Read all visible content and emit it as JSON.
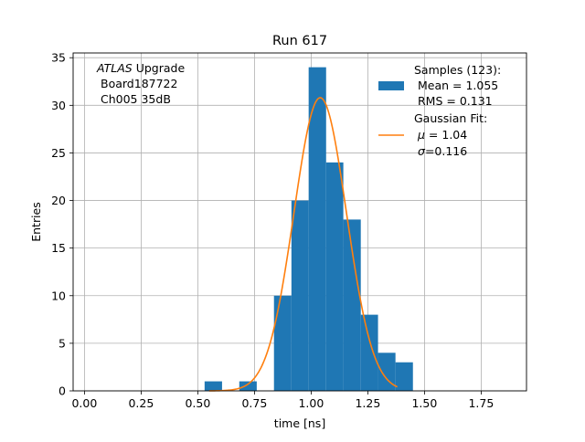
{
  "chart_data": {
    "type": "bar",
    "title": "Run 617",
    "xlabel": "time [ns]",
    "ylabel": "Entries",
    "xlim": [
      -0.05,
      1.95
    ],
    "ylim": [
      0,
      35.5
    ],
    "xticks": [
      0.0,
      0.25,
      0.5,
      0.75,
      1.0,
      1.25,
      1.5,
      1.75
    ],
    "xtick_labels": [
      "0.00",
      "0.25",
      "0.50",
      "0.75",
      "1.00",
      "1.25",
      "1.50",
      "1.75"
    ],
    "yticks": [
      0,
      5,
      10,
      15,
      20,
      25,
      30,
      35
    ],
    "ytick_labels": [
      "0",
      "5",
      "10",
      "15",
      "20",
      "25",
      "30",
      "35"
    ],
    "grid": true,
    "annotation": {
      "line1_italic": "ATLAS",
      "line1_rest": " Upgrade",
      "line2": "Board187722",
      "line3": "Ch005 35dB"
    },
    "histogram": {
      "name": "Samples (123):",
      "color": "#1f77b4",
      "bins": [
        {
          "x0": 0.53,
          "x1": 0.607,
          "count": 1
        },
        {
          "x0": 0.683,
          "x1": 0.76,
          "count": 1
        },
        {
          "x0": 0.836,
          "x1": 0.913,
          "count": 10
        },
        {
          "x0": 0.913,
          "x1": 0.989,
          "count": 20
        },
        {
          "x0": 0.989,
          "x1": 1.066,
          "count": 34
        },
        {
          "x0": 1.066,
          "x1": 1.142,
          "count": 24
        },
        {
          "x0": 1.142,
          "x1": 1.219,
          "count": 18
        },
        {
          "x0": 1.219,
          "x1": 1.295,
          "count": 8
        },
        {
          "x0": 1.295,
          "x1": 1.372,
          "count": 4
        },
        {
          "x0": 1.372,
          "x1": 1.449,
          "count": 3
        }
      ]
    },
    "fit": {
      "name": "Gaussian Fit:",
      "color": "#ff7f0e",
      "mu": 1.04,
      "sigma": 0.116,
      "amplitude": 30.8,
      "x_range": [
        0.55,
        1.38
      ]
    },
    "legend": {
      "placement": "top-right",
      "samples_title": "Samples (123):",
      "samples_mean": "Mean = 1.055",
      "samples_rms": "RMS = 0.131",
      "fit_title": "Gaussian Fit:",
      "fit_mu_symbol": "μ",
      "fit_mu_value": " = 1.04",
      "fit_sigma_symbol": "σ",
      "fit_sigma_value": "=0.116"
    }
  }
}
